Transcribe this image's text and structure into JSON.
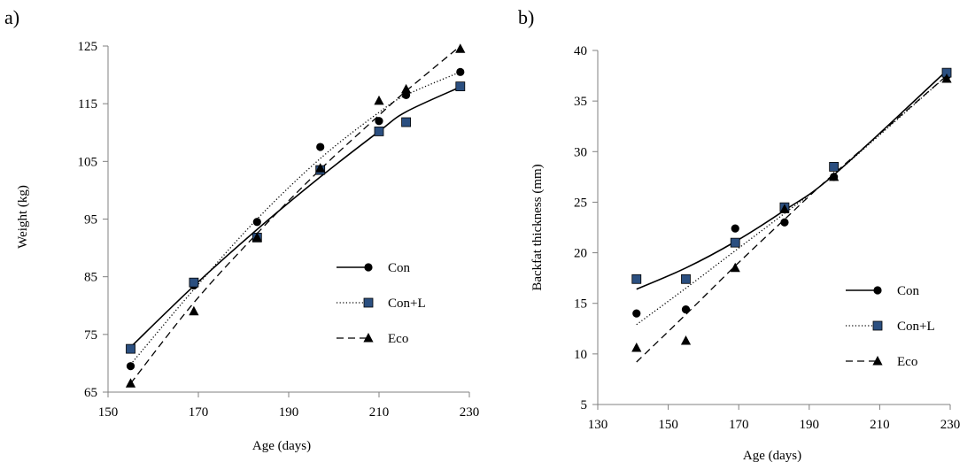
{
  "chart_data": [
    {
      "type": "scatter",
      "panel_label": "a)",
      "xlabel": "Age (days)",
      "ylabel": "Weight (kg)",
      "xlim": [
        150,
        230
      ],
      "ylim": [
        65,
        125
      ],
      "xticks": [
        150,
        170,
        190,
        210,
        230
      ],
      "yticks": [
        65,
        75,
        85,
        95,
        105,
        115,
        125
      ],
      "grid": false,
      "legend_position": "right",
      "series": [
        {
          "name": "Con",
          "marker": "circle",
          "trend_line": "solid",
          "x": [
            155,
            169,
            183,
            197,
            210,
            216,
            228
          ],
          "y": [
            69.5,
            83.5,
            94.5,
            107.5,
            112,
            116.5,
            120.5
          ],
          "trend": [
            72.8,
            83.4,
            93.2,
            102.3,
            110.2,
            113.6,
            117.9
          ]
        },
        {
          "name": "Con+L",
          "marker": "square",
          "trend_line": "dotted",
          "x": [
            155,
            169,
            183,
            197,
            210,
            216,
            228
          ],
          "y": [
            72.5,
            84,
            91.8,
            103.5,
            110.2,
            111.8,
            118
          ],
          "trend": [
            69.8,
            82.8,
            95,
            105.5,
            113.5,
            116.5,
            120.5
          ]
        },
        {
          "name": "Eco",
          "marker": "triangle",
          "trend_line": "dashed",
          "x": [
            155,
            169,
            183,
            197,
            210,
            216,
            228
          ],
          "y": [
            66.5,
            79,
            91.8,
            103.8,
            115.5,
            117.5,
            124.5
          ],
          "trend": [
            66.5,
            80.5,
            92.5,
            103.6,
            113,
            117.2,
            125
          ]
        }
      ]
    },
    {
      "type": "scatter",
      "panel_label": "b)",
      "xlabel": "Age (days)",
      "ylabel": "Backfat thickness (mm)",
      "xlim": [
        130,
        230
      ],
      "ylim": [
        5,
        40
      ],
      "xticks": [
        130,
        150,
        170,
        190,
        210,
        230
      ],
      "yticks": [
        5,
        10,
        15,
        20,
        25,
        30,
        35,
        40
      ],
      "grid": false,
      "legend_position": "bottom-right",
      "series": [
        {
          "name": "Con",
          "marker": "circle",
          "trend_line": "solid",
          "x": [
            141,
            155,
            169,
            183,
            197,
            229
          ],
          "y": [
            14,
            14.4,
            22.4,
            23,
            27.5,
            37.5
          ],
          "trend": [
            16.4,
            18.5,
            21.1,
            24.2,
            27.7,
            38
          ]
        },
        {
          "name": "Con+L",
          "marker": "square",
          "trend_line": "dotted",
          "x": [
            141,
            155,
            169,
            183,
            197,
            229
          ],
          "y": [
            17.4,
            17.4,
            21,
            24.5,
            28.5,
            37.8
          ],
          "trend": [
            12.9,
            16.5,
            20.2,
            23.9,
            27.7,
            37.5
          ]
        },
        {
          "name": "Eco",
          "marker": "triangle",
          "trend_line": "dashed",
          "x": [
            141,
            155,
            169,
            183,
            197,
            229
          ],
          "y": [
            10.6,
            11.3,
            18.5,
            24.3,
            27.5,
            37.2
          ],
          "trend": [
            9.2,
            13.9,
            18.7,
            23.3,
            27.8,
            37.5
          ]
        }
      ]
    }
  ]
}
